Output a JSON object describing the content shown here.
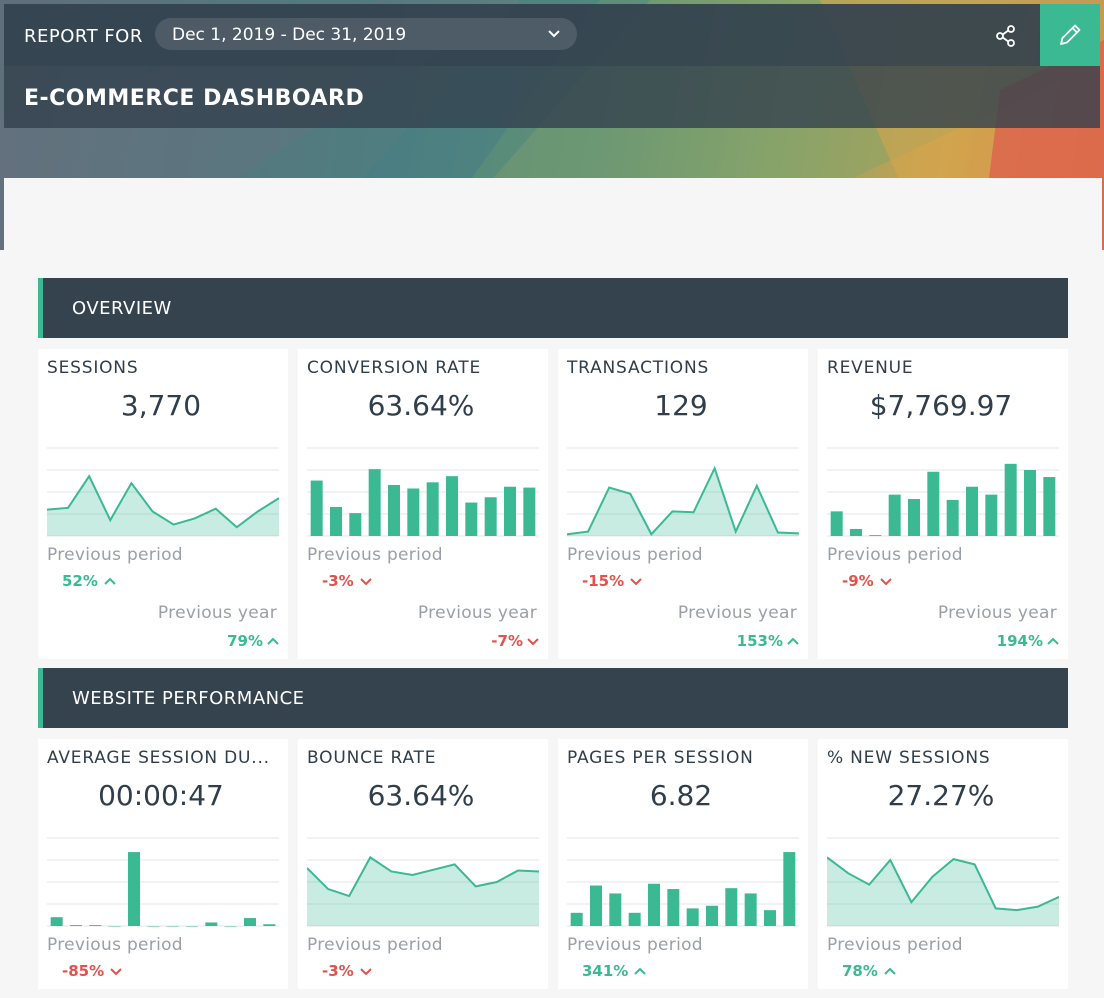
{
  "header": {
    "report_for_label": "REPORT FOR",
    "date_range": "Dec 1, 2019 - Dec 31, 2019",
    "title": "E-COMMERCE DASHBOARD"
  },
  "colors": {
    "accent": "#3ab992",
    "negative": "#e0524b",
    "dark": "#35434f"
  },
  "sections": [
    {
      "title": "OVERVIEW"
    },
    {
      "title": "WEBSITE PERFORMANCE"
    }
  ],
  "compare_labels": {
    "previous_period": "Previous period",
    "previous_year": "Previous year"
  },
  "cards": [
    {
      "label": "SESSIONS",
      "value": "3,770",
      "chart": "area",
      "series": [
        30,
        32,
        68,
        18,
        60,
        28,
        13,
        20,
        31,
        10,
        28,
        43
      ],
      "prev_period": "52%",
      "prev_dir": "up",
      "prev_year": "79%",
      "year_dir": "up"
    },
    {
      "label": "CONVERSION RATE",
      "value": "63.64%",
      "chart": "bar",
      "series": [
        63,
        33,
        26,
        76,
        58,
        54,
        61,
        68,
        38,
        44,
        56,
        55
      ],
      "prev_period": "-3%",
      "prev_dir": "down",
      "prev_year": "-7%",
      "year_dir": "down"
    },
    {
      "label": "TRANSACTIONS",
      "value": "129",
      "chart": "area",
      "series": [
        2,
        5,
        55,
        48,
        2,
        28,
        27,
        77,
        5,
        57,
        4,
        3
      ],
      "prev_period": "-15%",
      "prev_dir": "down",
      "prev_year": "153%",
      "year_dir": "up"
    },
    {
      "label": "REVENUE",
      "value": "$7,769.97",
      "chart": "bar",
      "series": [
        28,
        8,
        1,
        47,
        42,
        73,
        41,
        56,
        47,
        82,
        75,
        67
      ],
      "prev_period": "-9%",
      "prev_dir": "down",
      "prev_year": "194%",
      "year_dir": "up"
    },
    {
      "label": "AVERAGE SESSION DU...",
      "value": "00:00:47",
      "chart": "bar",
      "series": [
        10,
        1,
        1,
        0,
        84,
        0,
        0,
        0,
        4,
        0,
        9,
        2
      ],
      "prev_period": "-85%",
      "prev_dir": "down"
    },
    {
      "label": "BOUNCE RATE",
      "value": "63.64%",
      "chart": "area",
      "series": [
        66,
        42,
        34,
        78,
        62,
        58,
        64,
        70,
        45,
        50,
        63,
        62
      ],
      "prev_period": "-3%",
      "prev_dir": "down"
    },
    {
      "label": "PAGES PER SESSION",
      "value": "6.82",
      "chart": "bar",
      "series": [
        15,
        46,
        37,
        15,
        48,
        42,
        20,
        23,
        43,
        37,
        18,
        84
      ],
      "prev_period": "341%",
      "prev_dir": "up"
    },
    {
      "label": "% NEW SESSIONS",
      "value": "27.27%",
      "chart": "area",
      "series": [
        78,
        60,
        47,
        75,
        27,
        56,
        76,
        70,
        20,
        18,
        22,
        33
      ],
      "prev_period": "78%",
      "prev_dir": "up"
    }
  ]
}
